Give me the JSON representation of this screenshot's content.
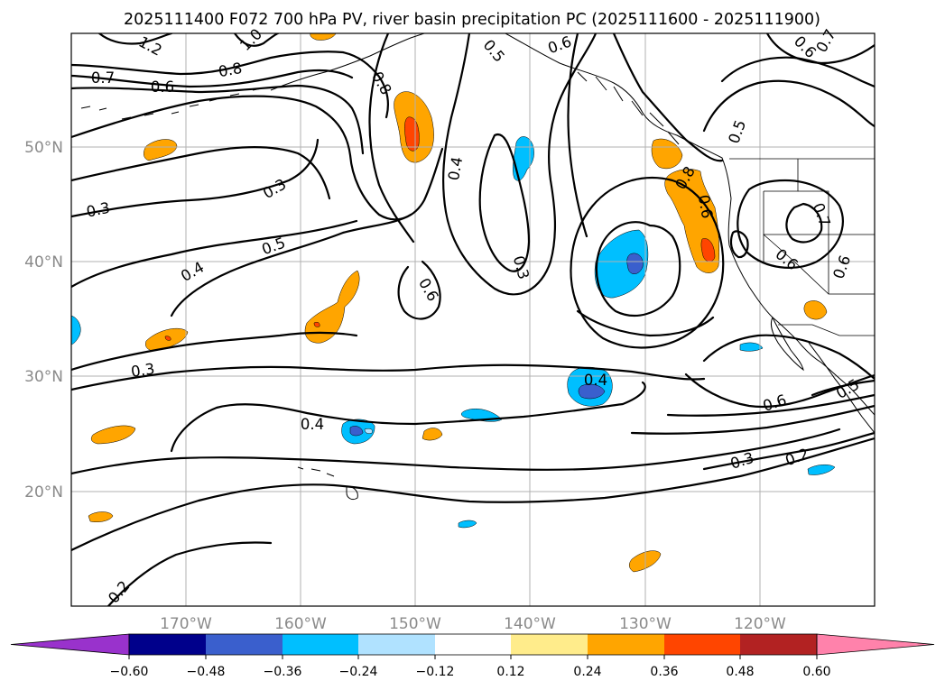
{
  "title": "2025111400 F072 700 hPa PV, river basin precipitation PC (2025111600 - 2025111900)",
  "map": {
    "lat_labels": [
      {
        "lat": 50,
        "text": "50°N"
      },
      {
        "lat": 40,
        "text": "40°N"
      },
      {
        "lat": 30,
        "text": "30°N"
      },
      {
        "lat": 20,
        "text": "20°N"
      }
    ],
    "lon_labels": [
      {
        "lon": -170,
        "text": "170°W"
      },
      {
        "lon": -160,
        "text": "160°W"
      },
      {
        "lon": -150,
        "text": "150°W"
      },
      {
        "lon": -140,
        "text": "140°W"
      },
      {
        "lon": -130,
        "text": "130°W"
      },
      {
        "lon": -120,
        "text": "120°W"
      }
    ],
    "lon_range": [
      -180,
      -110
    ],
    "lat_range": [
      10,
      60
    ]
  },
  "contour_labels": [
    {
      "text": "1.2"
    },
    {
      "text": "1.0"
    },
    {
      "text": "0.8"
    },
    {
      "text": "0.7"
    },
    {
      "text": "0.6"
    },
    {
      "text": "0.5"
    },
    {
      "text": "0.6"
    },
    {
      "text": "0.6"
    },
    {
      "text": "0.7"
    },
    {
      "text": "0.8"
    },
    {
      "text": "0.3"
    },
    {
      "text": "0.3"
    },
    {
      "text": "0.4"
    },
    {
      "text": "0.5"
    },
    {
      "text": "0.4"
    },
    {
      "text": "0.6"
    },
    {
      "text": "0.3"
    },
    {
      "text": "0.3"
    },
    {
      "text": "0.4"
    },
    {
      "text": "0.4"
    },
    {
      "text": "0.5"
    },
    {
      "text": "0.6"
    },
    {
      "text": "0.7"
    },
    {
      "text": "0.6"
    },
    {
      "text": "0.6"
    },
    {
      "text": "0.8"
    },
    {
      "text": "0.6"
    },
    {
      "text": "0.3"
    },
    {
      "text": "0.2"
    },
    {
      "text": "0.5"
    },
    {
      "text": "0.2"
    }
  ],
  "colorbar": {
    "ticks": [
      "−0.60",
      "−0.48",
      "−0.36",
      "−0.24",
      "−0.12",
      "0.12",
      "0.24",
      "0.36",
      "0.48",
      "0.60"
    ],
    "colors": [
      "#9932cc",
      "#00008b",
      "#3a5fcd",
      "#00bfff",
      "#b0e2ff",
      "#ffffff",
      "#ffec8b",
      "#ffa500",
      "#ff4500",
      "#b22222",
      "#ff82ab"
    ]
  }
}
